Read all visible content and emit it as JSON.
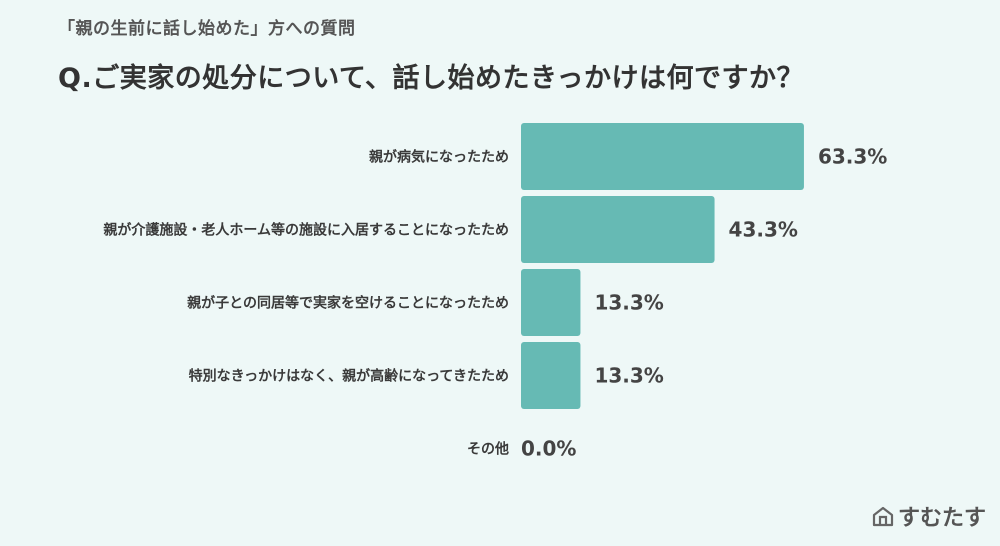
{
  "header": {
    "subtitle": "「親の生前に話し始めた」方への質問",
    "title": "Q.ご実家の処分について、話し始めたきっかけは何ですか？"
  },
  "brand": {
    "name": "すむたす"
  },
  "colors": {
    "bar": "#66bab4",
    "background": "#eef8f7"
  },
  "chart_data": {
    "type": "bar",
    "orientation": "horizontal",
    "categories": [
      "親が病気になったため",
      "親が介護施設・老人ホーム等の施設に入居することになったため",
      "親が子との同居等で実家を空けることになったため",
      "特別なきっかけはなく、親が高齢になってきたため",
      "その他"
    ],
    "values": [
      63.3,
      43.3,
      13.3,
      13.3,
      0.0
    ],
    "value_labels": [
      "63.3%",
      "43.3%",
      "13.3%",
      "13.3%",
      "0.0%"
    ],
    "title": "Q.ご実家の処分について、話し始めたきっかけは何ですか？",
    "xlabel": "",
    "ylabel": "",
    "grid": false,
    "legend": "none"
  }
}
